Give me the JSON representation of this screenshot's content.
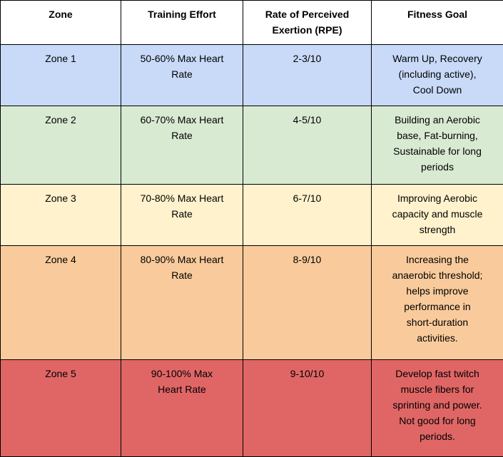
{
  "colors": {
    "border": "#000000",
    "header_bg": "#ffffff",
    "text": "#000000",
    "zone1_bg": "#c9daf8",
    "zone2_bg": "#d9ead3",
    "zone3_bg": "#fff2cc",
    "zone4_bg": "#f9cb9c",
    "zone5_bg": "#e06666"
  },
  "table": {
    "headers": {
      "zone": "Zone",
      "effort": "Training Effort",
      "rpe": "Rate of Perceived\nExertion (RPE)",
      "goal": "Fitness Goal"
    },
    "rows": [
      {
        "zone": "Zone 1",
        "effort": "50-60% Max Heart\nRate",
        "rpe": "2-3/10",
        "goal": "Warm Up, Recovery\n(including active),\nCool Down",
        "color": "#c9daf8"
      },
      {
        "zone": "Zone 2",
        "effort": "60-70% Max Heart\nRate",
        "rpe": "4-5/10",
        "goal": "Building an Aerobic\nbase, Fat-burning,\nSustainable for long\nperiods",
        "color": "#d9ead3"
      },
      {
        "zone": "Zone 3",
        "effort": "70-80% Max Heart\nRate",
        "rpe": "6-7/10",
        "goal": "Improving Aerobic\ncapacity and muscle\nstrength",
        "color": "#fff2cc"
      },
      {
        "zone": "Zone 4",
        "effort": "80-90% Max Heart\nRate",
        "rpe": "8-9/10",
        "goal": "Increasing the\nanaerobic threshold;\nhelps improve\nperformance in\nshort-duration\nactivities.",
        "color": "#f9cb9c"
      },
      {
        "zone": "Zone 5",
        "effort": "90-100% Max\nHeart Rate",
        "rpe": "9-10/10",
        "goal": "Develop fast twitch\nmuscle fibers for\nsprinting and power.\nNot good for long\nperiods.",
        "color": "#e06666"
      }
    ]
  }
}
